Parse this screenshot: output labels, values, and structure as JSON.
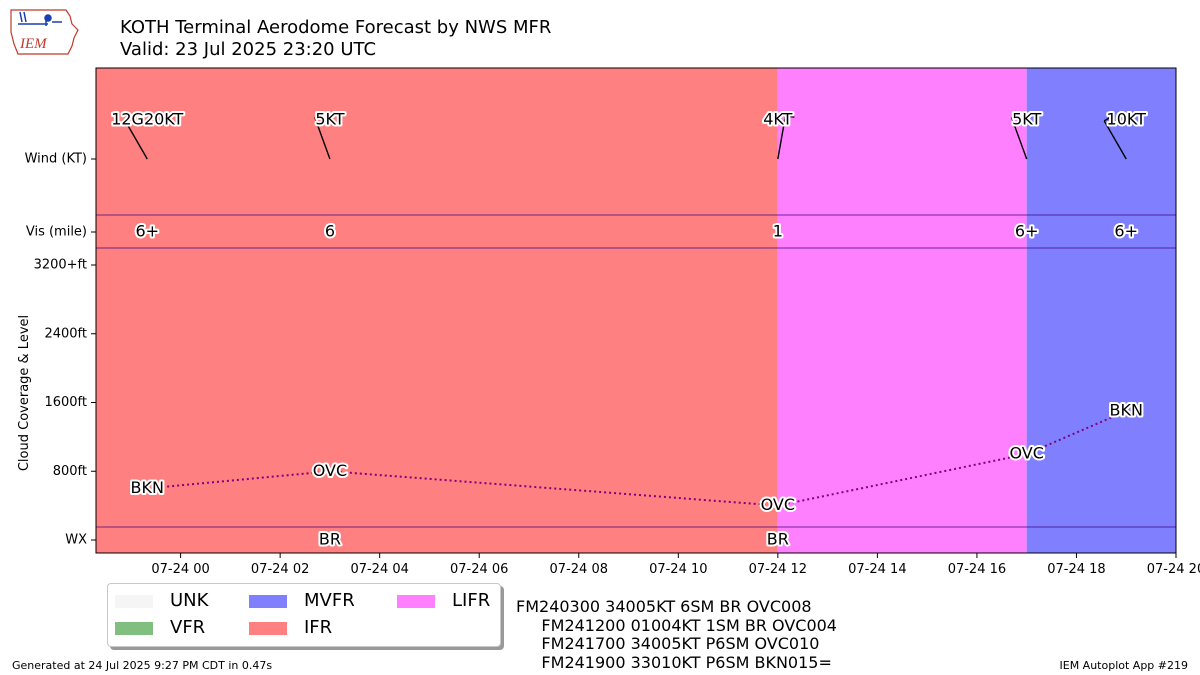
{
  "header": {
    "logo_text": "IEM",
    "title_line1": "KOTH Terminal Aerodome Forecast by NWS MFR",
    "title_line2": "Valid: 23 Jul 2025 23:20 UTC"
  },
  "colors": {
    "UNK": "#f5f5f5",
    "VFR": "#80bf80",
    "MVFR": "#8080ff",
    "IFR": "#ff8080",
    "LIFR": "#ff80ff",
    "line": "#800080",
    "logo": "#c0392b"
  },
  "legend": {
    "items": [
      {
        "label": "UNK",
        "color": "#f5f5f5"
      },
      {
        "label": "VFR",
        "color": "#80bf80"
      },
      {
        "label": "MVFR",
        "color": "#8080ff"
      },
      {
        "label": "IFR",
        "color": "#ff8080"
      },
      {
        "label": "LIFR",
        "color": "#ff80ff"
      }
    ]
  },
  "taf_text": [
    "FM240300 34005KT 6SM BR OVC008",
    "     FM241200 01004KT 1SM BR OVC004",
    "     FM241700 34005KT P6SM OVC010",
    "     FM241900 33010KT P6SM BKN015="
  ],
  "footer": {
    "left": "Generated at 24 Jul 2025 9:27 PM CDT in 0.47s",
    "right": "IEM Autoplot App #219"
  },
  "chart_data": {
    "type": "timeline",
    "x_unit": "hours since 2025-07-23 00:00 UTC",
    "xlim": [
      22.3,
      44
    ],
    "x_ticks": [
      {
        "x": 24,
        "label": "07-24 00"
      },
      {
        "x": 26,
        "label": "07-24 02"
      },
      {
        "x": 28,
        "label": "07-24 04"
      },
      {
        "x": 30,
        "label": "07-24 06"
      },
      {
        "x": 32,
        "label": "07-24 08"
      },
      {
        "x": 34,
        "label": "07-24 10"
      },
      {
        "x": 36,
        "label": "07-24 12"
      },
      {
        "x": 38,
        "label": "07-24 14"
      },
      {
        "x": 40,
        "label": "07-24 16"
      },
      {
        "x": 42,
        "label": "07-24 18"
      },
      {
        "x": 44,
        "label": "07-24 20"
      }
    ],
    "y_labels": {
      "wind": "Wind (KT)",
      "vis": "Vis (mile)",
      "wx": "WX",
      "cloud_axis": "Cloud Coverage & Level"
    },
    "cloud_ylim": [
      -200,
      3400
    ],
    "cloud_ticks": [
      {
        "v": 800,
        "label": "800ft"
      },
      {
        "v": 1600,
        "label": "1600ft"
      },
      {
        "v": 2400,
        "label": "2400ft"
      },
      {
        "v": 3200,
        "label": "3200+ft"
      }
    ],
    "categories": [
      {
        "start": 22.3,
        "end": 36.0,
        "cat": "IFR"
      },
      {
        "start": 36.0,
        "end": 41.0,
        "cat": "LIFR"
      },
      {
        "start": 41.0,
        "end": 44.0,
        "cat": "MVFR"
      }
    ],
    "winds": [
      {
        "x": 23.33,
        "dir": 330,
        "label": "12G20KT"
      },
      {
        "x": 27.0,
        "dir": 340,
        "label": "5KT"
      },
      {
        "x": 36.0,
        "dir": 10,
        "label": "4KT"
      },
      {
        "x": 41.0,
        "dir": 340,
        "label": "5KT"
      },
      {
        "x": 43.0,
        "dir": 330,
        "label": "10KT"
      }
    ],
    "visibility": [
      {
        "x": 23.33,
        "label": "6+"
      },
      {
        "x": 27.0,
        "label": "6"
      },
      {
        "x": 36.0,
        "label": "1"
      },
      {
        "x": 41.0,
        "label": "6+"
      },
      {
        "x": 43.0,
        "label": "6+"
      }
    ],
    "clouds": [
      {
        "x": 23.33,
        "level": 600,
        "label": "BKN"
      },
      {
        "x": 27.0,
        "level": 800,
        "label": "OVC"
      },
      {
        "x": 36.0,
        "level": 400,
        "label": "OVC"
      },
      {
        "x": 41.0,
        "level": 1000,
        "label": "OVC"
      },
      {
        "x": 43.0,
        "level": 1500,
        "label": "BKN"
      }
    ],
    "weather": [
      {
        "x": 27.0,
        "label": "BR"
      },
      {
        "x": 36.0,
        "label": "BR"
      }
    ]
  }
}
